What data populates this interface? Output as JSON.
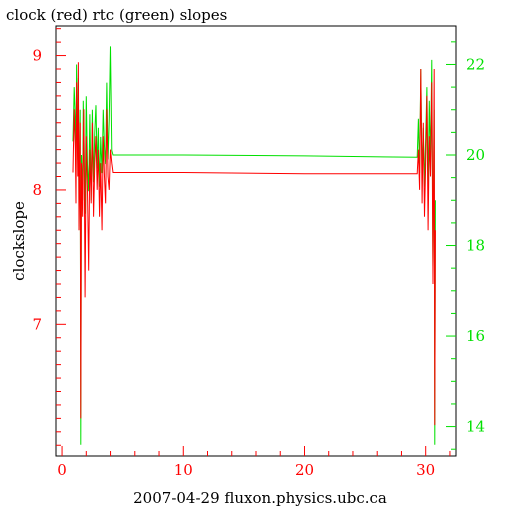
{
  "chart_data": {
    "type": "line",
    "title": "clock (red) rtc (green) slopes",
    "xlabel": "2007-04-29 fluxon.physics.ubc.ca",
    "ylabel": "clockslope",
    "xlim": [
      -0.5,
      32.5
    ],
    "ylim_left": [
      6.02,
      9.22
    ],
    "ylim_right": [
      13.35,
      22.85
    ],
    "x_ticks": [
      0,
      10,
      20,
      30
    ],
    "y_left_ticks": [
      7,
      8,
      9
    ],
    "y_right_ticks": [
      14,
      16,
      18,
      20,
      22
    ],
    "grid": false,
    "series": [
      {
        "name": "clock",
        "axis": "left",
        "color": "#ff0000",
        "x": [
          0.9,
          1.0,
          1.1,
          1.15,
          1.2,
          1.3,
          1.35,
          1.4,
          1.5,
          1.55,
          1.6,
          1.7,
          1.75,
          1.8,
          1.9,
          2.0,
          2.1,
          2.2,
          2.3,
          2.4,
          2.5,
          2.6,
          2.7,
          2.8,
          2.9,
          3.0,
          3.1,
          3.2,
          3.3,
          3.4,
          3.5,
          3.6,
          3.7,
          3.8,
          3.9,
          4.0,
          4.1,
          4.2,
          4.3,
          10.0,
          20.0,
          29.3,
          29.4,
          29.5,
          29.6,
          29.7,
          29.8,
          29.9,
          30.0,
          30.1,
          30.2,
          30.3,
          30.4,
          30.5,
          30.6,
          30.7,
          30.75,
          30.8
        ],
        "y": [
          8.13,
          8.6,
          8.3,
          7.9,
          8.8,
          8.1,
          8.95,
          7.7,
          8.5,
          6.3,
          8.2,
          7.8,
          8.3,
          8.6,
          7.2,
          8.4,
          8.0,
          7.4,
          8.3,
          7.9,
          8.5,
          7.8,
          8.2,
          8.4,
          8.0,
          8.3,
          7.8,
          8.2,
          7.7,
          8.4,
          8.1,
          7.9,
          8.6,
          8.1,
          8.0,
          8.3,
          8.2,
          8.13,
          8.13,
          8.13,
          8.12,
          8.12,
          8.3,
          8.0,
          8.9,
          7.9,
          8.5,
          7.8,
          8.2,
          8.7,
          7.7,
          8.4,
          8.1,
          8.8,
          7.3,
          8.9,
          6.25,
          7.7
        ]
      },
      {
        "name": "rtc",
        "axis": "right",
        "color": "#00e000",
        "x": [
          0.9,
          1.0,
          1.1,
          1.15,
          1.2,
          1.3,
          1.35,
          1.4,
          1.5,
          1.55,
          1.6,
          1.7,
          1.75,
          1.8,
          1.9,
          2.0,
          2.1,
          2.2,
          2.3,
          2.4,
          2.5,
          2.6,
          2.7,
          2.8,
          2.9,
          3.0,
          3.1,
          3.2,
          3.3,
          3.4,
          3.5,
          3.6,
          3.7,
          3.8,
          3.9,
          4.0,
          4.1,
          4.2,
          4.3,
          10.0,
          20.0,
          29.3,
          29.4,
          29.5,
          29.6,
          29.7,
          29.8,
          29.9,
          30.0,
          30.1,
          30.2,
          30.3,
          30.4,
          30.5,
          30.6,
          30.7,
          30.75,
          30.8
        ],
        "y": [
          20.3,
          21.5,
          20.8,
          19.5,
          22.0,
          19.9,
          21.7,
          18.8,
          21.0,
          13.6,
          20.0,
          19.0,
          21.2,
          20.5,
          18.7,
          21.3,
          19.8,
          19.2,
          20.9,
          19.0,
          21.0,
          19.4,
          20.5,
          21.1,
          19.7,
          20.6,
          19.3,
          20.4,
          19.6,
          21.0,
          20.2,
          19.8,
          21.6,
          19.9,
          20.8,
          22.4,
          20.1,
          20.0,
          20.0,
          20.0,
          19.98,
          19.95,
          20.8,
          19.6,
          21.9,
          19.5,
          20.6,
          19.3,
          20.4,
          21.5,
          19.2,
          21.2,
          19.9,
          22.1,
          17.5,
          21.0,
          13.6,
          19.0
        ]
      }
    ]
  }
}
